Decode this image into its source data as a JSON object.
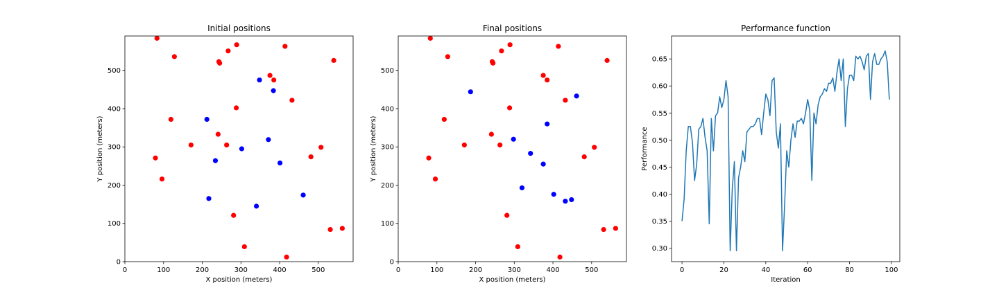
{
  "chart_data": [
    {
      "type": "scatter",
      "title": "Initial positions",
      "xlabel": "X position (meters)",
      "ylabel": "Y position (meters)",
      "xlim": [
        0,
        590
      ],
      "ylim": [
        0,
        590
      ],
      "xticks": [
        0,
        100,
        200,
        300,
        400,
        500
      ],
      "yticks": [
        0,
        100,
        200,
        300,
        400,
        500
      ],
      "grid": false,
      "series": [
        {
          "color": "#ff0000",
          "points": [
            [
              83,
              584
            ],
            [
              128,
              536
            ],
            [
              267,
              551
            ],
            [
              289,
              567
            ],
            [
              414,
              563
            ],
            [
              540,
              526
            ],
            [
              243,
              523
            ],
            [
              245,
              519
            ],
            [
              375,
              487
            ],
            [
              385,
              475
            ],
            [
              432,
              422
            ],
            [
              288,
              402
            ],
            [
              119,
              372
            ],
            [
              171,
              305
            ],
            [
              263,
              305
            ],
            [
              241,
              333
            ],
            [
              507,
              299
            ],
            [
              481,
              274
            ],
            [
              79,
              271
            ],
            [
              96,
              216
            ],
            [
              281,
              121
            ],
            [
              531,
              84
            ],
            [
              562,
              87
            ],
            [
              309,
              39
            ],
            [
              418,
              12
            ]
          ]
        },
        {
          "color": "#0000ff",
          "points": [
            [
              348,
              475
            ],
            [
              384,
              447
            ],
            [
              212,
              372
            ],
            [
              302,
              295
            ],
            [
              371,
              319
            ],
            [
              234,
              264
            ],
            [
              401,
              258
            ],
            [
              217,
              165
            ],
            [
              340,
              145
            ],
            [
              461,
              174
            ]
          ]
        }
      ]
    },
    {
      "type": "scatter",
      "title": "Final positions",
      "xlabel": "X position (meters)",
      "ylabel": "Y position (meters)",
      "xlim": [
        0,
        590
      ],
      "ylim": [
        0,
        590
      ],
      "xticks": [
        0,
        100,
        200,
        300,
        400,
        500
      ],
      "yticks": [
        0,
        100,
        200,
        300,
        400,
        500
      ],
      "grid": false,
      "series": [
        {
          "color": "#ff0000",
          "points": [
            [
              83,
              584
            ],
            [
              128,
              536
            ],
            [
              267,
              551
            ],
            [
              289,
              567
            ],
            [
              414,
              563
            ],
            [
              540,
              526
            ],
            [
              243,
              523
            ],
            [
              245,
              519
            ],
            [
              375,
              487
            ],
            [
              385,
              475
            ],
            [
              432,
              422
            ],
            [
              288,
              402
            ],
            [
              119,
              372
            ],
            [
              171,
              305
            ],
            [
              263,
              305
            ],
            [
              241,
              333
            ],
            [
              507,
              299
            ],
            [
              481,
              274
            ],
            [
              79,
              271
            ],
            [
              96,
              216
            ],
            [
              281,
              121
            ],
            [
              531,
              84
            ],
            [
              562,
              87
            ],
            [
              309,
              39
            ],
            [
              418,
              12
            ]
          ]
        },
        {
          "color": "#0000ff",
          "points": [
            [
              187,
              444
            ],
            [
              461,
              433
            ],
            [
              385,
              360
            ],
            [
              298,
              320
            ],
            [
              342,
              283
            ],
            [
              375,
              255
            ],
            [
              320,
              193
            ],
            [
              402,
              176
            ],
            [
              432,
              158
            ],
            [
              448,
              162
            ]
          ]
        }
      ]
    },
    {
      "type": "line",
      "title": "Performance function",
      "xlabel": "Iteration",
      "ylabel": "Performance",
      "xlim": [
        -5,
        104
      ],
      "ylim": [
        0.275,
        0.6925
      ],
      "xticks": [
        0,
        20,
        40,
        60,
        80,
        100
      ],
      "yticks": [
        0.3,
        0.35,
        0.4,
        0.45,
        0.5,
        0.55,
        0.6,
        0.65
      ],
      "ytick_decimals": 2,
      "grid": false,
      "series": [
        {
          "color": "#1f77b4",
          "x": [
            0,
            1,
            2,
            3,
            4,
            5,
            6,
            7,
            8,
            9,
            10,
            11,
            12,
            13,
            14,
            15,
            16,
            17,
            18,
            19,
            20,
            21,
            22,
            23,
            24,
            25,
            26,
            27,
            28,
            29,
            30,
            31,
            32,
            33,
            34,
            35,
            36,
            37,
            38,
            39,
            40,
            41,
            42,
            43,
            44,
            45,
            46,
            47,
            48,
            49,
            50,
            51,
            52,
            53,
            54,
            55,
            56,
            57,
            58,
            59,
            60,
            61,
            62,
            63,
            64,
            65,
            66,
            67,
            68,
            69,
            70,
            71,
            72,
            73,
            74,
            75,
            76,
            77,
            78,
            79,
            80,
            81,
            82,
            83,
            84,
            85,
            86,
            87,
            88,
            89,
            90,
            91,
            92,
            93,
            94,
            95,
            96,
            97,
            98,
            99
          ],
          "y": [
            0.35,
            0.39,
            0.48,
            0.525,
            0.525,
            0.495,
            0.425,
            0.455,
            0.52,
            0.525,
            0.54,
            0.505,
            0.48,
            0.345,
            0.54,
            0.48,
            0.545,
            0.55,
            0.58,
            0.56,
            0.575,
            0.61,
            0.58,
            0.295,
            0.41,
            0.46,
            0.295,
            0.43,
            0.45,
            0.48,
            0.46,
            0.515,
            0.52,
            0.525,
            0.525,
            0.53,
            0.54,
            0.54,
            0.51,
            0.55,
            0.585,
            0.575,
            0.545,
            0.61,
            0.615,
            0.515,
            0.485,
            0.53,
            0.295,
            0.38,
            0.48,
            0.45,
            0.5,
            0.53,
            0.505,
            0.535,
            0.535,
            0.54,
            0.53,
            0.55,
            0.575,
            0.555,
            0.425,
            0.55,
            0.53,
            0.565,
            0.58,
            0.585,
            0.595,
            0.59,
            0.605,
            0.605,
            0.615,
            0.59,
            0.625,
            0.65,
            0.61,
            0.65,
            0.525,
            0.595,
            0.62,
            0.62,
            0.61,
            0.655,
            0.65,
            0.655,
            0.645,
            0.63,
            0.655,
            0.66,
            0.575,
            0.645,
            0.66,
            0.64,
            0.64,
            0.65,
            0.655,
            0.665,
            0.645,
            0.575
          ]
        }
      ]
    }
  ]
}
